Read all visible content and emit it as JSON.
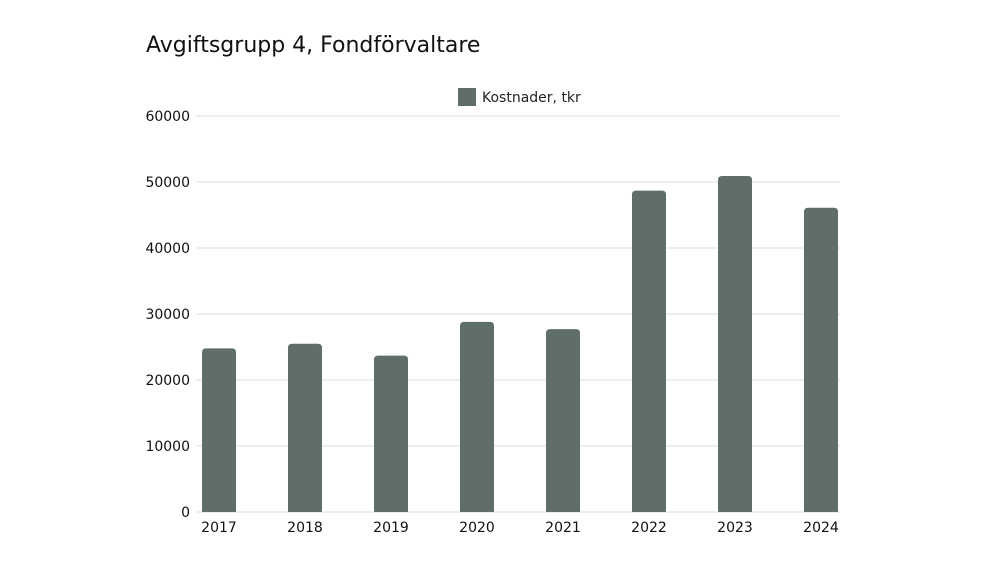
{
  "chart_data": {
    "type": "bar",
    "title": "Avgiftsgrupp 4, Fondförvaltare",
    "xlabel": "",
    "ylabel": "",
    "categories": [
      "2017",
      "2018",
      "2019",
      "2020",
      "2021",
      "2022",
      "2023",
      "2024"
    ],
    "series": [
      {
        "name": "Kostnader, tkr",
        "values": [
          24800,
          25500,
          23700,
          28800,
          27700,
          48700,
          50900,
          46100
        ],
        "color": "#5f6e68"
      }
    ],
    "ylim": [
      0,
      60000
    ],
    "yticks": [
      0,
      10000,
      20000,
      30000,
      40000,
      50000,
      60000
    ],
    "grid": true,
    "legend_position": "top-center"
  }
}
